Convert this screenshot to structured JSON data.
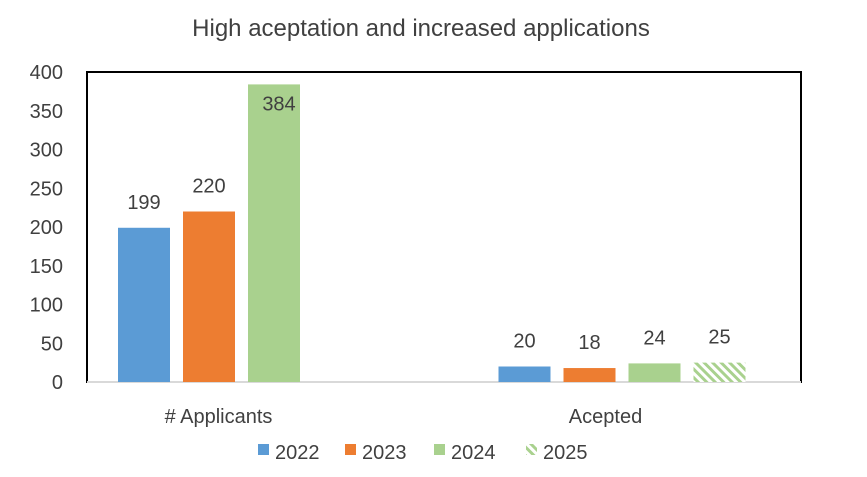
{
  "chart_data": {
    "type": "bar",
    "title": "High aceptation and increased applications",
    "categories": [
      "# Applicants",
      "Acepted"
    ],
    "series": [
      {
        "name": "2022",
        "color": "#5B9BD5",
        "pattern": "solid",
        "values": [
          199,
          20
        ]
      },
      {
        "name": "2023",
        "color": "#ED7D31",
        "pattern": "solid",
        "values": [
          220,
          18
        ]
      },
      {
        "name": "2024",
        "color": "#A9D18E",
        "pattern": "solid",
        "values": [
          384,
          24
        ]
      },
      {
        "name": "2025",
        "color": "#A9D18E",
        "pattern": "hatched",
        "values": [
          null,
          25
        ]
      }
    ],
    "ylim": [
      0,
      400
    ],
    "yticks": [
      0,
      50,
      100,
      150,
      200,
      250,
      300,
      350,
      400
    ],
    "grid": false,
    "legend_position": "bottom"
  }
}
